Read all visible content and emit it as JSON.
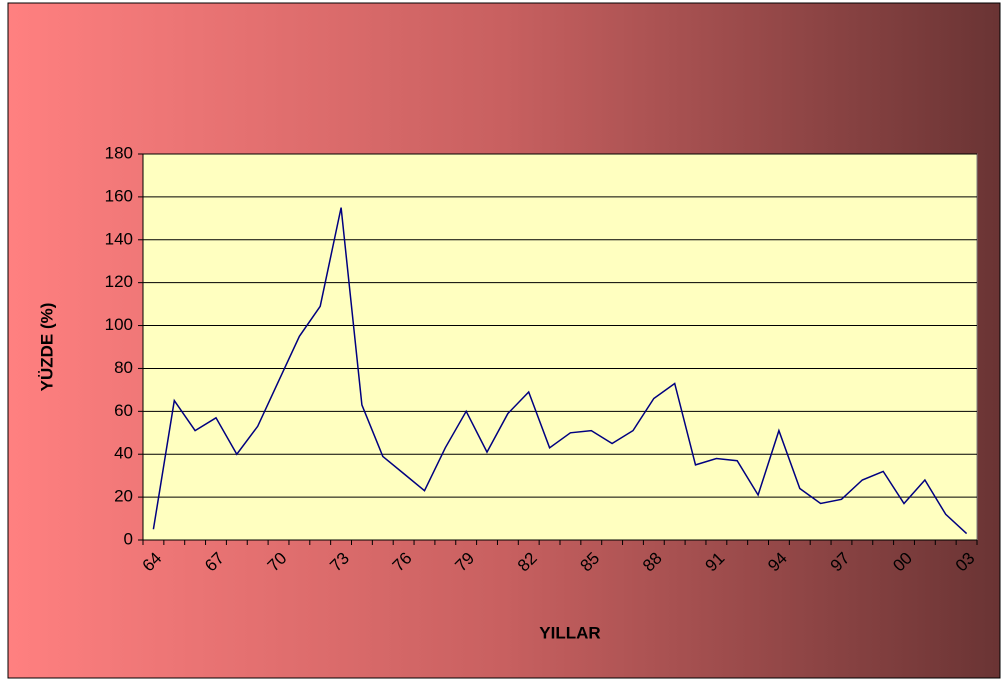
{
  "chart_data": {
    "type": "line",
    "x_label": "YILLAR",
    "y_label": "YÜZDE (%)",
    "categories": [
      "64",
      null,
      null,
      "67",
      null,
      null,
      "70",
      null,
      null,
      "73",
      null,
      null,
      "76",
      null,
      null,
      "79",
      null,
      null,
      "82",
      null,
      null,
      "85",
      null,
      null,
      "88",
      null,
      null,
      "91",
      null,
      null,
      "94",
      null,
      null,
      "97",
      null,
      null,
      "00",
      null,
      null,
      "03"
    ],
    "values": [
      5,
      65,
      51,
      57,
      40,
      53,
      74,
      95,
      109,
      155,
      63,
      39,
      31,
      23,
      43,
      60,
      41,
      59,
      69,
      43,
      50,
      51,
      45,
      51,
      66,
      73,
      35,
      38,
      37,
      21,
      51,
      24,
      17,
      19,
      28,
      32,
      17,
      28,
      12,
      3
    ],
    "color": "#000080",
    "ylim": [
      0,
      180
    ],
    "yticks": [
      0,
      20,
      40,
      60,
      80,
      100,
      120,
      140,
      160,
      180
    ],
    "grid": true
  }
}
